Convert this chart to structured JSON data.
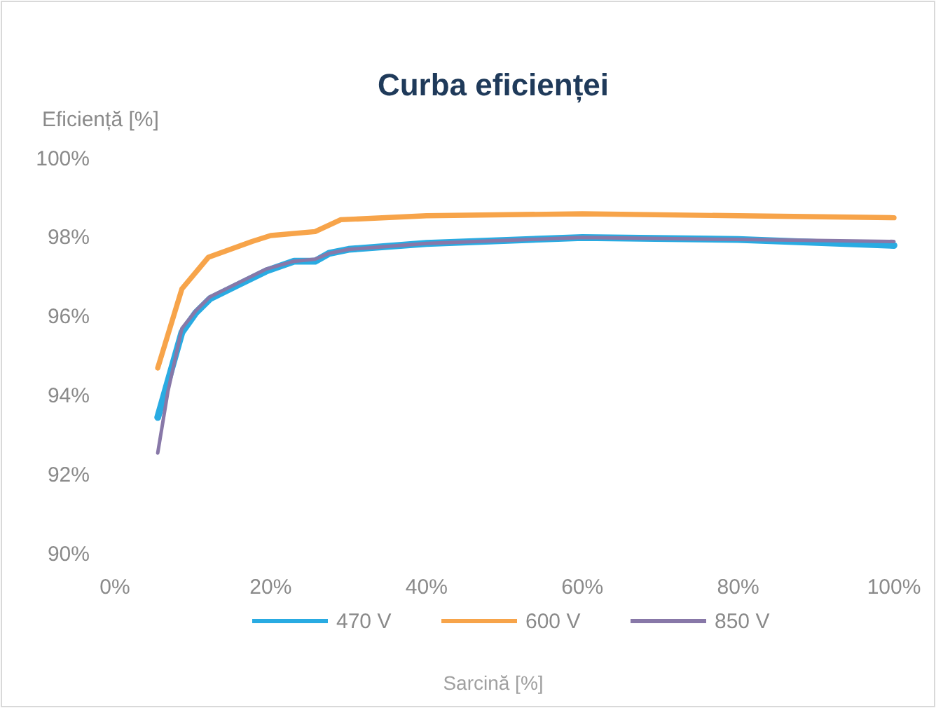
{
  "chart_data": {
    "type": "line",
    "title": "Curba eficienței",
    "xlabel": "Sarcină [%]",
    "ylabel": "Eficiență [%]",
    "xlim": [
      0,
      100
    ],
    "xticks": [
      {
        "value": 0,
        "label": "0%"
      },
      {
        "value": 20,
        "label": "20%"
      },
      {
        "value": 40,
        "label": "40%"
      },
      {
        "value": 60,
        "label": "60%"
      },
      {
        "value": 80,
        "label": "80%"
      },
      {
        "value": 100,
        "label": "100%"
      }
    ],
    "ylim": [
      90,
      100
    ],
    "yticks": [
      {
        "value": 90,
        "label": "90%"
      },
      {
        "value": 92,
        "label": "92%"
      },
      {
        "value": 94,
        "label": "94%"
      },
      {
        "value": 96,
        "label": "96%"
      },
      {
        "value": 98,
        "label": "98%"
      },
      {
        "value": 100,
        "label": "100%"
      }
    ],
    "grid": false,
    "legend": "bottom",
    "marker": "none",
    "line_style": "solid",
    "series": [
      {
        "name": "470 V",
        "color": "#29abe2",
        "x": [
          5.5,
          8.6,
          10.4,
          12.2,
          15.8,
          19.4,
          23,
          25.7,
          27.5,
          30,
          40,
          60,
          80,
          100
        ],
        "values": [
          93.45,
          95.6,
          96.1,
          96.45,
          96.8,
          97.15,
          97.4,
          97.4,
          97.6,
          97.7,
          97.85,
          98,
          97.95,
          97.8
        ]
      },
      {
        "name": "600 V",
        "color": "#f7a44a",
        "x": [
          5.5,
          8.6,
          12,
          17.6,
          20,
          25.7,
          29,
          40,
          60,
          80,
          100
        ],
        "values": [
          94.7,
          96.7,
          97.5,
          97.9,
          98.05,
          98.15,
          98.45,
          98.55,
          98.6,
          98.55,
          98.5
        ]
      },
      {
        "name": "850 V",
        "color": "#8878a8",
        "x": [
          5.5,
          6.8,
          8.6,
          10.4,
          12.2,
          15.8,
          19.4,
          23,
          25.7,
          27.5,
          30,
          40,
          60,
          80,
          100
        ],
        "values": [
          92.55,
          94.1,
          95.7,
          96.15,
          96.5,
          96.85,
          97.2,
          97.4,
          97.45,
          97.6,
          97.7,
          97.85,
          98,
          97.95,
          97.9
        ]
      }
    ]
  }
}
